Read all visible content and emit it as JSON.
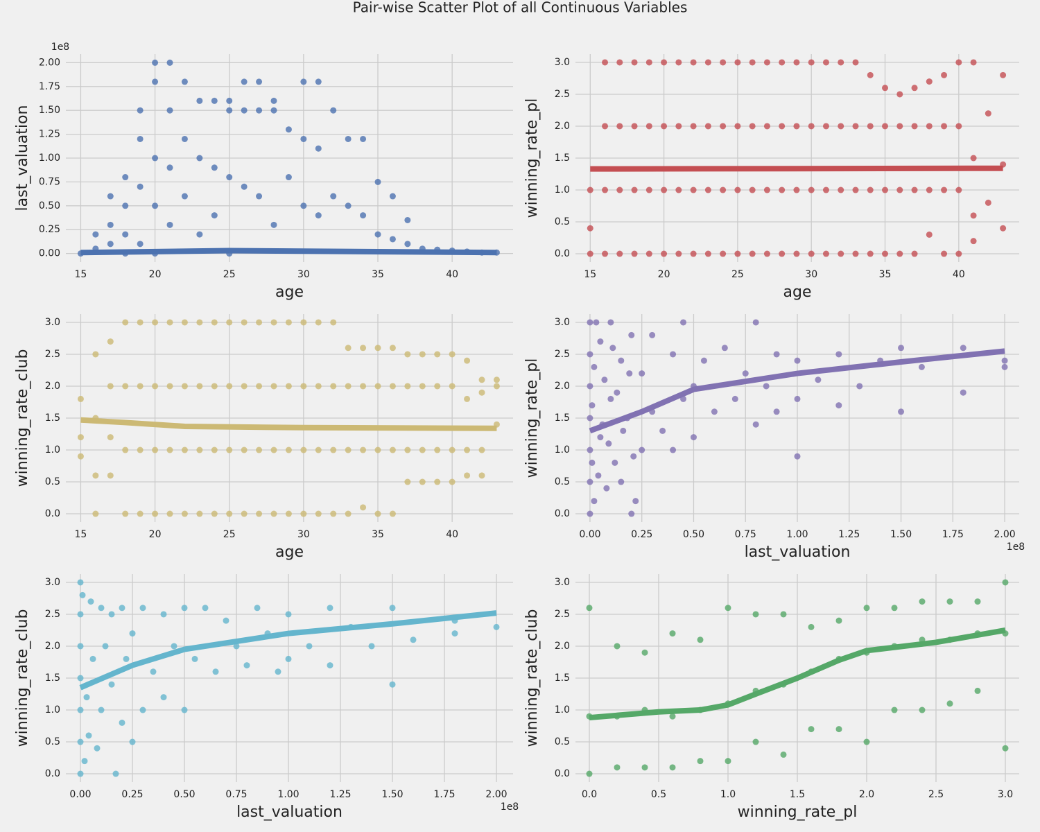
{
  "title": "Pair-wise Scatter Plot of all Continuous Variables",
  "chart_data": [
    {
      "type": "scatter",
      "xlabel": "age",
      "ylabel": "last_valuation",
      "y_offset_label": "1e8",
      "color": "#4c72b0",
      "xlim": [
        14,
        44.1
      ],
      "ylim": [
        -0.09,
        2.09
      ],
      "xticks": [
        15,
        20,
        25,
        30,
        35,
        40
      ],
      "yticks": [
        {
          "value": 0,
          "label": "0.00"
        },
        0.25,
        {
          "value": 0.5,
          "label": "0.50"
        },
        0.75,
        {
          "value": 1,
          "label": "1.00"
        },
        1.25,
        {
          "value": 1.5,
          "label": "1.50"
        },
        1.75,
        {
          "value": 2,
          "label": "2.00"
        }
      ],
      "x": [
        15,
        16,
        16,
        17,
        17,
        17,
        18,
        18,
        18,
        18,
        19,
        19,
        19,
        19,
        20,
        20,
        20,
        20,
        20,
        21,
        21,
        21,
        21,
        22,
        22,
        22,
        23,
        23,
        23,
        24,
        24,
        24,
        25,
        25,
        25,
        25,
        26,
        26,
        26,
        27,
        27,
        27,
        28,
        28,
        28,
        29,
        29,
        30,
        30,
        30,
        31,
        31,
        31,
        32,
        32,
        33,
        33,
        34,
        34,
        35,
        35,
        36,
        36,
        37,
        37,
        38,
        39,
        40,
        41,
        42,
        43
      ],
      "y": [
        0,
        0.2,
        0.05,
        0.6,
        0.3,
        0.1,
        0.8,
        0.5,
        0.2,
        0,
        1.5,
        1.2,
        0.7,
        0.1,
        2.0,
        1.8,
        1.0,
        0.5,
        0,
        2.0,
        1.5,
        0.9,
        0.3,
        1.8,
        1.2,
        0.6,
        1.6,
        1.0,
        0.2,
        1.6,
        0.9,
        0.4,
        1.6,
        1.5,
        0.8,
        0,
        1.8,
        1.5,
        0.7,
        1.8,
        1.5,
        0.6,
        1.6,
        1.5,
        0.3,
        1.3,
        0.8,
        1.8,
        1.2,
        0.5,
        1.8,
        1.1,
        0.4,
        1.5,
        0.6,
        1.2,
        0.5,
        1.2,
        0.4,
        0.75,
        0.2,
        0.6,
        0.15,
        0.35,
        0.1,
        0.05,
        0.04,
        0.03,
        0.02,
        0.01,
        0.01
      ],
      "fit_x": [
        15,
        25,
        43
      ],
      "fit_y": [
        0.01,
        0.03,
        0.01
      ]
    },
    {
      "type": "scatter",
      "xlabel": "age",
      "ylabel": "winning_rate_pl",
      "color": "#c44e52",
      "xlim": [
        14,
        44.1
      ],
      "ylim": [
        -0.13,
        3.13
      ],
      "xticks": [
        15,
        20,
        25,
        30,
        35,
        40
      ],
      "yticks": [
        {
          "value": 0,
          "label": "0.0"
        },
        0.5,
        {
          "value": 1,
          "label": "1.0"
        },
        1.5,
        {
          "value": 2,
          "label": "2.0"
        },
        2.5,
        {
          "value": 3,
          "label": "3.0"
        }
      ],
      "x": [
        15,
        15,
        15,
        16,
        16,
        16,
        16,
        17,
        17,
        17,
        17,
        18,
        18,
        18,
        18,
        19,
        19,
        19,
        19,
        20,
        20,
        20,
        20,
        21,
        21,
        21,
        21,
        22,
        22,
        22,
        22,
        23,
        23,
        23,
        23,
        24,
        24,
        24,
        24,
        25,
        25,
        25,
        25,
        26,
        26,
        26,
        26,
        27,
        27,
        27,
        27,
        28,
        28,
        28,
        28,
        29,
        29,
        29,
        29,
        30,
        30,
        30,
        30,
        31,
        31,
        31,
        31,
        32,
        32,
        32,
        32,
        33,
        33,
        33,
        33,
        34,
        34,
        34,
        34,
        35,
        35,
        35,
        35,
        36,
        36,
        36,
        36,
        37,
        37,
        37,
        37,
        38,
        38,
        38,
        38,
        39,
        39,
        39,
        39,
        40,
        40,
        40,
        40,
        41,
        41,
        41,
        41,
        42,
        42,
        43,
        43,
        43
      ],
      "y": [
        0,
        0.4,
        1.0,
        0,
        1,
        2,
        3,
        0,
        1,
        2,
        3,
        0,
        1,
        2,
        3,
        0,
        1,
        2,
        3,
        0,
        1,
        2,
        3,
        0,
        1,
        2,
        3,
        0,
        1,
        2,
        3,
        0,
        1,
        2,
        3,
        0,
        1,
        2,
        3,
        0,
        1,
        2,
        3,
        0,
        1,
        2,
        3,
        0,
        1,
        2,
        3,
        0,
        1,
        2,
        3,
        0,
        1,
        2,
        3,
        0,
        1,
        2,
        3,
        0,
        1,
        2,
        3,
        0,
        1,
        2,
        3,
        0,
        1,
        2,
        3,
        0,
        1,
        2,
        2.8,
        0,
        1,
        2,
        2.6,
        0,
        1,
        2,
        2.5,
        0,
        1,
        2,
        2.6,
        0.3,
        1,
        2,
        2.7,
        0,
        1,
        2,
        2.8,
        0,
        1,
        2,
        3,
        0.2,
        0.6,
        1.5,
        3,
        0.8,
        2.2,
        0.4,
        1.4,
        2.8
      ],
      "fit_x": [
        15,
        43
      ],
      "fit_y": [
        1.33,
        1.34
      ]
    },
    {
      "type": "scatter",
      "xlabel": "age",
      "ylabel": "winning_rate_club",
      "color": "#ccb974",
      "xlim": [
        14,
        44.1
      ],
      "ylim": [
        -0.13,
        3.13
      ],
      "xticks": [
        15,
        20,
        25,
        30,
        35,
        40
      ],
      "yticks": [
        {
          "value": 0,
          "label": "0.0"
        },
        0.5,
        {
          "value": 1,
          "label": "1.0"
        },
        1.5,
        {
          "value": 2,
          "label": "2.0"
        },
        2.5,
        {
          "value": 3,
          "label": "3.0"
        }
      ],
      "x": [
        15,
        15,
        15,
        16,
        16,
        16,
        16,
        17,
        17,
        17,
        17,
        18,
        18,
        18,
        18,
        19,
        19,
        19,
        19,
        20,
        20,
        20,
        20,
        21,
        21,
        21,
        21,
        22,
        22,
        22,
        22,
        23,
        23,
        23,
        23,
        24,
        24,
        24,
        24,
        25,
        25,
        25,
        25,
        26,
        26,
        26,
        26,
        27,
        27,
        27,
        27,
        28,
        28,
        28,
        28,
        29,
        29,
        29,
        29,
        30,
        30,
        30,
        30,
        31,
        31,
        31,
        31,
        32,
        32,
        32,
        32,
        33,
        33,
        33,
        33,
        34,
        34,
        34,
        34,
        35,
        35,
        35,
        35,
        36,
        36,
        36,
        36,
        37,
        37,
        37,
        37,
        38,
        38,
        38,
        38,
        39,
        39,
        39,
        39,
        40,
        40,
        40,
        40,
        41,
        41,
        41,
        41,
        42,
        42,
        42,
        42,
        43,
        43,
        43
      ],
      "y": [
        0.9,
        1.2,
        1.8,
        0,
        0.6,
        1.5,
        2.5,
        0.6,
        1.2,
        2.0,
        2.7,
        0,
        1,
        2,
        3,
        0,
        1,
        2,
        3,
        0,
        1,
        2,
        3,
        0,
        1,
        2,
        3,
        0,
        1,
        2,
        3,
        0,
        1,
        2,
        3,
        0,
        1,
        2,
        3,
        0,
        1,
        2,
        3,
        0,
        1,
        2,
        3,
        0,
        1,
        2,
        3,
        0,
        1,
        2,
        3,
        0,
        1,
        2,
        3,
        0,
        1,
        2,
        3,
        0,
        1,
        2,
        3,
        0,
        1,
        2,
        3,
        0,
        1,
        2,
        2.6,
        0.1,
        1,
        2,
        2.6,
        0,
        1,
        2,
        2.6,
        0,
        1,
        2,
        2.6,
        0.5,
        1,
        2,
        2.5,
        0.5,
        1,
        2,
        2.5,
        0.5,
        1,
        2,
        2.5,
        0.5,
        1,
        2,
        2.5,
        0.6,
        1,
        1.8,
        2.4,
        0.6,
        1,
        1.9,
        2.1,
        1.4,
        2.0,
        2.1
      ],
      "fit_x": [
        15,
        18,
        22,
        30,
        43
      ],
      "fit_y": [
        1.47,
        1.43,
        1.37,
        1.35,
        1.34
      ]
    },
    {
      "type": "scatter",
      "xlabel": "last_valuation",
      "ylabel": "winning_rate_pl",
      "x_offset_label": "1e8",
      "color": "#8172b2",
      "xlim": [
        -0.07,
        2.07
      ],
      "ylim": [
        -0.13,
        3.13
      ],
      "xticks": [
        {
          "value": 0,
          "label": "0.00"
        },
        0.25,
        {
          "value": 0.5,
          "label": "0.50"
        },
        0.75,
        {
          "value": 1,
          "label": "1.00"
        },
        1.25,
        {
          "value": 1.5,
          "label": "1.50"
        },
        1.75,
        {
          "value": 2,
          "label": "2.00"
        }
      ],
      "yticks": [
        {
          "value": 0,
          "label": "0.0"
        },
        0.5,
        {
          "value": 1,
          "label": "1.0"
        },
        1.5,
        {
          "value": 2,
          "label": "2.0"
        },
        2.5,
        {
          "value": 3,
          "label": "3.0"
        }
      ],
      "x": [
        0,
        0,
        0,
        0,
        0,
        0,
        0,
        0.01,
        0.01,
        0.02,
        0.02,
        0.03,
        0.04,
        0.05,
        0.05,
        0.06,
        0.07,
        0.08,
        0.09,
        0.1,
        0.1,
        0.11,
        0.12,
        0.13,
        0.15,
        0.15,
        0.16,
        0.18,
        0.19,
        0.2,
        0.2,
        0.21,
        0.22,
        0.25,
        0.25,
        0.3,
        0.3,
        0.35,
        0.4,
        0.4,
        0.45,
        0.45,
        0.5,
        0.5,
        0.55,
        0.6,
        0.65,
        0.7,
        0.75,
        0.8,
        0.8,
        0.85,
        0.9,
        0.9,
        1.0,
        1.0,
        1.0,
        1.1,
        1.2,
        1.2,
        1.3,
        1.4,
        1.5,
        1.5,
        1.6,
        1.8,
        1.8,
        2.0,
        2.0
      ],
      "y": [
        0,
        0.5,
        1,
        1.5,
        2,
        2.5,
        3,
        0.8,
        1.7,
        0.2,
        2.3,
        3,
        0.6,
        1.2,
        2.7,
        1.4,
        2.1,
        0.4,
        1.1,
        3,
        1.8,
        2.6,
        0.8,
        1.9,
        2.4,
        0.5,
        1.3,
        1.5,
        2.2,
        0,
        2.8,
        0.9,
        0.2,
        1.0,
        2.2,
        1.6,
        2.8,
        1.3,
        2.5,
        1.0,
        1.8,
        3,
        2.0,
        1.2,
        2.4,
        1.6,
        2.6,
        1.8,
        2.2,
        3,
        1.4,
        2.0,
        2.5,
        1.6,
        0.9,
        2.4,
        1.8,
        2.1,
        1.7,
        2.5,
        2.0,
        2.4,
        1.6,
        2.6,
        2.3,
        2.6,
        1.9,
        2.4,
        2.3
      ],
      "fit_x": [
        0,
        0.25,
        0.5,
        1.0,
        1.5,
        2.0
      ],
      "fit_y": [
        1.3,
        1.6,
        1.95,
        2.2,
        2.38,
        2.55
      ]
    },
    {
      "type": "scatter",
      "xlabel": "last_valuation",
      "ylabel": "winning_rate_club",
      "x_offset_label": "1e8",
      "color": "#64b5cd",
      "xlim": [
        -0.07,
        2.08
      ],
      "ylim": [
        -0.13,
        3.13
      ],
      "xticks": [
        {
          "value": 0,
          "label": "0.00"
        },
        0.25,
        {
          "value": 0.5,
          "label": "0.50"
        },
        0.75,
        {
          "value": 1,
          "label": "1.00"
        },
        1.25,
        {
          "value": 1.5,
          "label": "1.50"
        },
        1.75,
        {
          "value": 2,
          "label": "2.00"
        }
      ],
      "yticks": [
        {
          "value": 0,
          "label": "0.0"
        },
        0.5,
        {
          "value": 1,
          "label": "1.0"
        },
        1.5,
        {
          "value": 2,
          "label": "2.0"
        },
        2.5,
        {
          "value": 3,
          "label": "3.0"
        }
      ],
      "x": [
        0,
        0,
        0,
        0,
        0,
        0,
        0,
        0.01,
        0.02,
        0.03,
        0.04,
        0.05,
        0.06,
        0.08,
        0.1,
        0.1,
        0.12,
        0.15,
        0.15,
        0.17,
        0.2,
        0.2,
        0.22,
        0.25,
        0.25,
        0.3,
        0.3,
        0.35,
        0.4,
        0.4,
        0.45,
        0.5,
        0.5,
        0.55,
        0.6,
        0.65,
        0.7,
        0.75,
        0.8,
        0.85,
        0.9,
        0.95,
        1.0,
        1.0,
        1.1,
        1.2,
        1.2,
        1.3,
        1.4,
        1.5,
        1.5,
        1.6,
        1.8,
        1.8,
        2.0
      ],
      "y": [
        0,
        0.5,
        1,
        1.5,
        2,
        2.5,
        3,
        2.8,
        0.2,
        1.2,
        0.6,
        2.7,
        1.8,
        0.4,
        2.6,
        1.0,
        2.0,
        1.4,
        2.5,
        0,
        0.8,
        2.6,
        1.8,
        0.5,
        2.2,
        1.0,
        2.6,
        1.6,
        1.2,
        2.5,
        2.0,
        1.0,
        2.6,
        1.8,
        2.6,
        1.6,
        2.4,
        2.0,
        1.7,
        2.6,
        2.2,
        1.6,
        1.8,
        2.5,
        2.0,
        1.7,
        2.6,
        2.3,
        2.0,
        1.4,
        2.6,
        2.1,
        2.4,
        2.2,
        2.3
      ],
      "fit_x": [
        0,
        0.25,
        0.5,
        1.0,
        1.5,
        2.0
      ],
      "fit_y": [
        1.35,
        1.7,
        1.95,
        2.2,
        2.35,
        2.52
      ]
    },
    {
      "type": "scatter",
      "xlabel": "winning_rate_pl",
      "ylabel": "winning_rate_club",
      "color": "#55a868",
      "xlim": [
        -0.1,
        3.1
      ],
      "ylim": [
        -0.13,
        3.13
      ],
      "xticks": [
        {
          "value": 0,
          "label": "0.0"
        },
        0.5,
        {
          "value": 1,
          "label": "1.0"
        },
        1.5,
        {
          "value": 2,
          "label": "2.0"
        },
        2.5,
        {
          "value": 3,
          "label": "3.0"
        }
      ],
      "yticks": [
        {
          "value": 0,
          "label": "0.0"
        },
        0.5,
        {
          "value": 1,
          "label": "1.0"
        },
        1.5,
        {
          "value": 2,
          "label": "2.0"
        },
        2.5,
        {
          "value": 3,
          "label": "3.0"
        }
      ],
      "x": [
        0,
        0,
        0,
        0.2,
        0.2,
        0.2,
        0.4,
        0.4,
        0.4,
        0.6,
        0.6,
        0.6,
        0.8,
        0.8,
        0.8,
        1.0,
        1.0,
        1.0,
        1.2,
        1.2,
        1.2,
        1.4,
        1.4,
        1.4,
        1.6,
        1.6,
        1.6,
        1.8,
        1.8,
        1.8,
        2.0,
        2.0,
        2.0,
        2.2,
        2.2,
        2.2,
        2.4,
        2.4,
        2.4,
        2.6,
        2.6,
        2.6,
        2.8,
        2.8,
        2.8,
        3.0,
        3.0,
        3.0
      ],
      "y": [
        0,
        0.9,
        2.6,
        0.1,
        0.9,
        2.0,
        0.1,
        1.0,
        1.9,
        0.1,
        0.9,
        2.2,
        0.2,
        1.0,
        2.1,
        0.2,
        1.1,
        2.6,
        0.5,
        1.3,
        2.5,
        0.3,
        1.4,
        2.5,
        0.7,
        1.6,
        2.3,
        0.7,
        1.8,
        2.4,
        0.5,
        1.9,
        2.6,
        1.0,
        2.0,
        2.6,
        1.0,
        2.1,
        2.7,
        1.1,
        2.1,
        2.7,
        1.3,
        2.2,
        2.7,
        0.4,
        2.2,
        3.0
      ],
      "fit_x": [
        0,
        0.5,
        0.8,
        1.0,
        1.2,
        1.5,
        1.8,
        2.0,
        2.5,
        3.0
      ],
      "fit_y": [
        0.88,
        0.97,
        1.0,
        1.08,
        1.25,
        1.5,
        1.78,
        1.93,
        2.06,
        2.25
      ]
    }
  ]
}
